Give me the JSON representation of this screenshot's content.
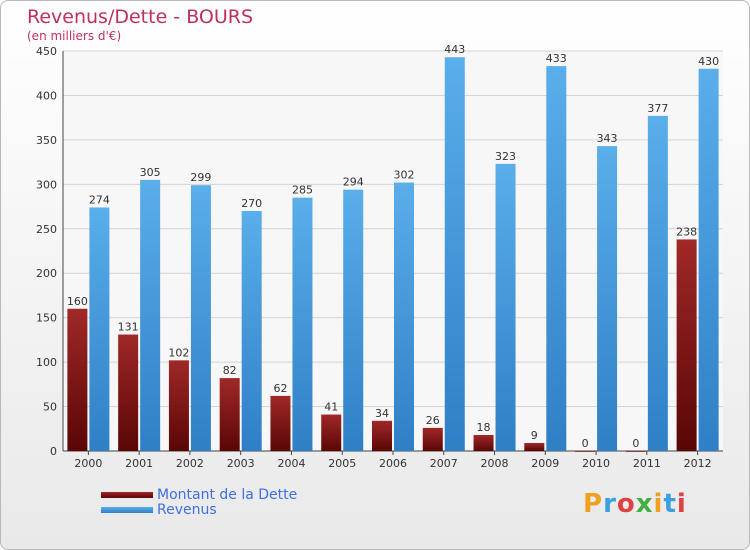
{
  "chart_data": {
    "type": "bar",
    "title": "Revenus/Dette - BOURS",
    "subtitle": "(en milliers d'€)",
    "categories": [
      "2000",
      "2001",
      "2002",
      "2003",
      "2004",
      "2005",
      "2006",
      "2007",
      "2008",
      "2009",
      "2010",
      "2011",
      "2012"
    ],
    "series": [
      {
        "name": "Montant de la Dette",
        "color": "#7a1212",
        "values": [
          160,
          131,
          102,
          82,
          62,
          41,
          34,
          26,
          18,
          9,
          0,
          0,
          238
        ]
      },
      {
        "name": "Revenus",
        "color": "#3f8fd8",
        "values": [
          274,
          305,
          299,
          270,
          285,
          294,
          302,
          443,
          323,
          433,
          343,
          377,
          430
        ]
      }
    ],
    "ylim": [
      0,
      450
    ],
    "yticks": [
      0,
      50,
      100,
      150,
      200,
      250,
      300,
      350,
      400,
      450
    ],
    "grid": true,
    "legend_position": "bottom-left"
  },
  "logo": {
    "letters": [
      "P",
      "r",
      "o",
      "x",
      "i",
      "t",
      "i"
    ],
    "colors": [
      "#f0a020",
      "#3aa0e0",
      "#e04040",
      "#40b040",
      "#f0a020",
      "#3aa0e0",
      "#e04040"
    ]
  }
}
